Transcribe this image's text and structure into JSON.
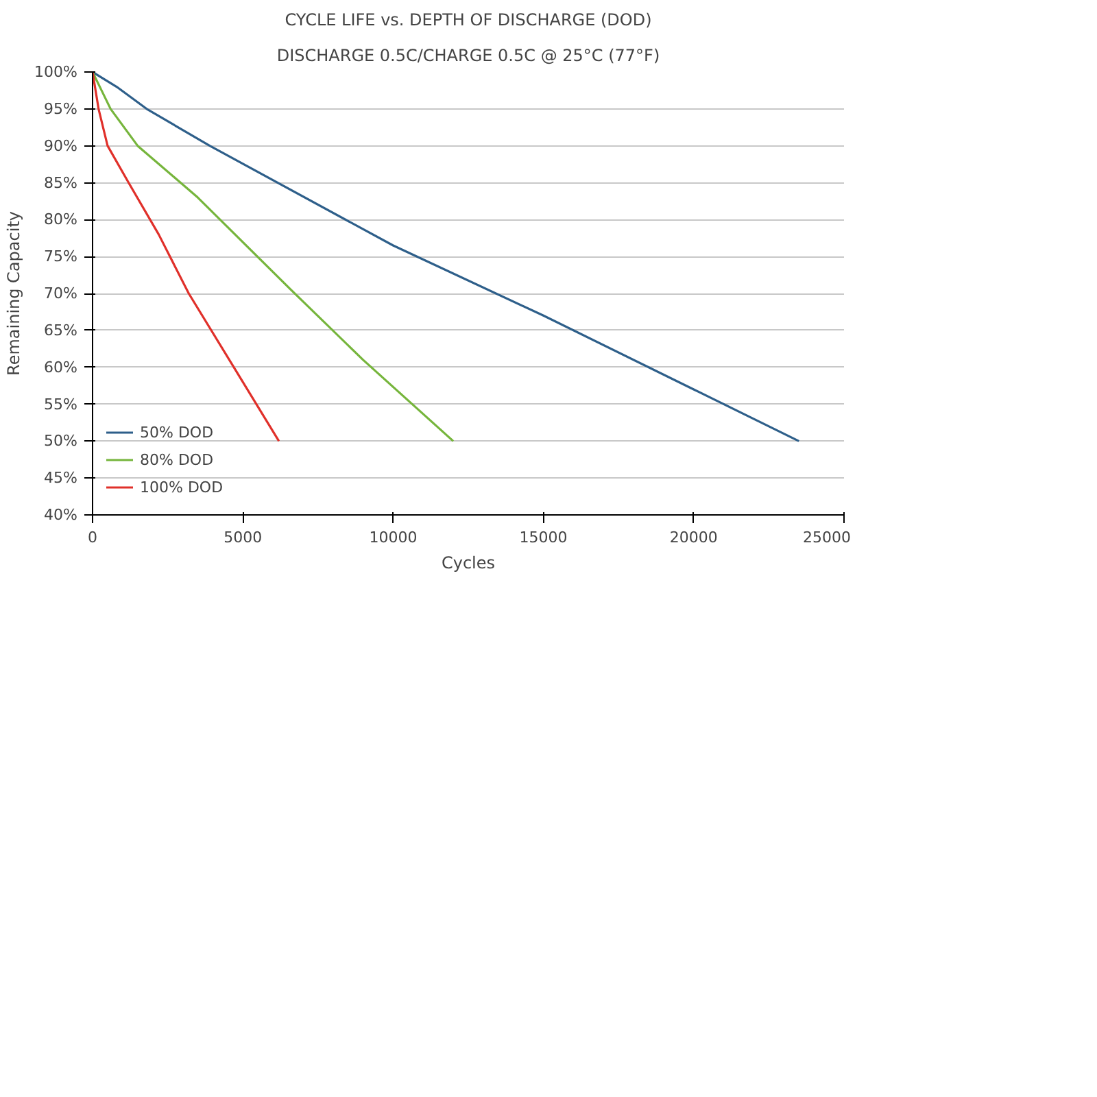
{
  "chart_data": {
    "type": "line",
    "title": "CYCLE LIFE vs. DEPTH OF DISCHARGE (DOD)",
    "subtitle": "DISCHARGE 0.5C/CHARGE 0.5C @ 25°C (77°F)",
    "xlabel": "Cycles",
    "ylabel": "Remaining Capacity",
    "xlim": [
      0,
      25000
    ],
    "ylim": [
      40,
      100
    ],
    "xticks": [
      0,
      5000,
      10000,
      15000,
      20000,
      25000
    ],
    "yticks": [
      {
        "value": 40,
        "label": "40%"
      },
      {
        "value": 45,
        "label": "45%"
      },
      {
        "value": 50,
        "label": "50%"
      },
      {
        "value": 55,
        "label": "55%"
      },
      {
        "value": 60,
        "label": "60%"
      },
      {
        "value": 65,
        "label": "65%"
      },
      {
        "value": 70,
        "label": "70%"
      },
      {
        "value": 75,
        "label": "75%"
      },
      {
        "value": 80,
        "label": "80%"
      },
      {
        "value": 85,
        "label": "85%"
      },
      {
        "value": 90,
        "label": "90%"
      },
      {
        "value": 95,
        "label": "95%"
      },
      {
        "value": 100,
        "label": "100%"
      }
    ],
    "grid": "y",
    "legend": "bottom left",
    "line_style": "solid",
    "series": [
      {
        "name": "50% DOD",
        "color": "#2e5f8a",
        "x": [
          0,
          800,
          1800,
          3900,
          10000,
          15000,
          20000,
          23500
        ],
        "values": [
          100,
          98,
          95,
          90,
          76.5,
          67,
          57,
          50
        ]
      },
      {
        "name": "80% DOD",
        "color": "#76b53c",
        "x": [
          0,
          300,
          600,
          1500,
          3500,
          6600,
          9000,
          12000
        ],
        "values": [
          100,
          97.5,
          95,
          90,
          83,
          70.5,
          61,
          50
        ]
      },
      {
        "name": "100% DOD",
        "color": "#e0302a",
        "x": [
          0,
          200,
          500,
          1200,
          2200,
          3200,
          4700,
          6200
        ],
        "values": [
          100,
          95,
          90,
          85,
          78,
          70,
          60,
          50
        ]
      }
    ]
  }
}
